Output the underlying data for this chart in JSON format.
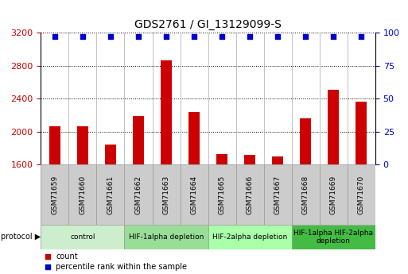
{
  "title": "GDS2761 / GI_13129099-S",
  "samples": [
    "GSM71659",
    "GSM71660",
    "GSM71661",
    "GSM71662",
    "GSM71663",
    "GSM71664",
    "GSM71665",
    "GSM71666",
    "GSM71667",
    "GSM71668",
    "GSM71669",
    "GSM71670"
  ],
  "counts": [
    2060,
    2060,
    1840,
    2190,
    2870,
    2240,
    1730,
    1720,
    1700,
    2160,
    2510,
    2360
  ],
  "ylim_left": [
    1600,
    3200
  ],
  "ylim_right": [
    0,
    100
  ],
  "yticks_left": [
    1600,
    2000,
    2400,
    2800,
    3200
  ],
  "yticks_right": [
    0,
    25,
    50,
    75,
    100
  ],
  "bar_color": "#cc0000",
  "dot_color": "#0000cc",
  "protocol_groups": [
    {
      "label": "control",
      "start": 0,
      "end": 3,
      "color": "#cceecc"
    },
    {
      "label": "HIF-1alpha depletion",
      "start": 3,
      "end": 6,
      "color": "#99dd99"
    },
    {
      "label": "HIF-2alpha depletion",
      "start": 6,
      "end": 9,
      "color": "#aaffaa"
    },
    {
      "label": "HIF-1alpha HIF-2alpha\ndepletion",
      "start": 9,
      "end": 12,
      "color": "#44bb44"
    }
  ],
  "legend_count_label": "count",
  "legend_percentile_label": "percentile rank within the sample",
  "bar_width": 0.4,
  "tick_label_color_left": "#cc0000",
  "tick_label_color_right": "#0000cc",
  "sample_box_color": "#cccccc",
  "grid_linestyle": "dotted",
  "grid_color": "#000000"
}
